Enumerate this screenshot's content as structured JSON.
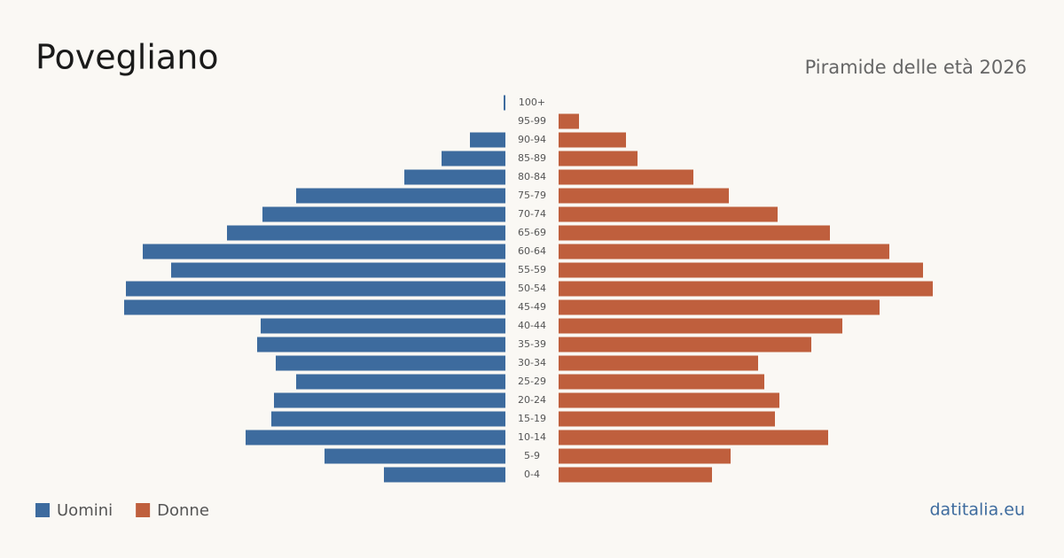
{
  "chart_data": {
    "type": "pyramid",
    "title": "Povegliano",
    "subtitle": "Piramide delle età 2026",
    "source": "datitalia.eu",
    "categories": [
      "100+",
      "95-99",
      "90-94",
      "85-89",
      "80-84",
      "75-79",
      "70-74",
      "65-69",
      "60-64",
      "55-59",
      "50-54",
      "45-49",
      "40-44",
      "35-39",
      "30-34",
      "25-29",
      "20-24",
      "15-19",
      "10-14",
      "5-9",
      "0-4"
    ],
    "series": [
      {
        "name": "Uomini",
        "color": "#3d6b9e",
        "side": "left",
        "values": [
          2,
          0,
          40,
          72,
          114,
          236,
          274,
          314,
          409,
          377,
          428,
          430,
          276,
          280,
          259,
          236,
          261,
          264,
          293,
          204,
          137
        ]
      },
      {
        "name": "Donne",
        "color": "#bf5f3d",
        "side": "right",
        "values": [
          0,
          23,
          76,
          89,
          152,
          192,
          247,
          306,
          373,
          411,
          422,
          362,
          320,
          285,
          225,
          232,
          249,
          244,
          304,
          194,
          173
        ]
      }
    ]
  }
}
